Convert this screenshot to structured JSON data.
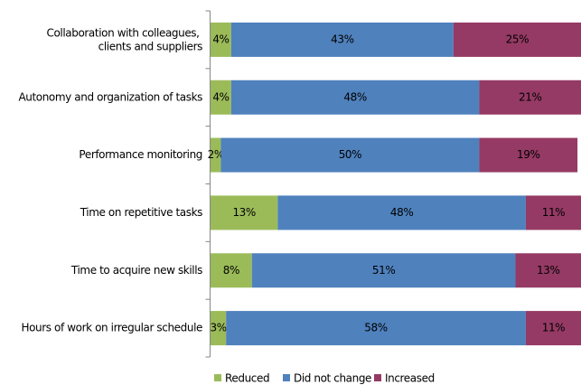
{
  "chart_data": {
    "type": "stacked-bar-horizontal",
    "categories": [
      "Collaboration with colleagues, clients and suppliers",
      "Autonomy and organization of tasks",
      "Performance monitoring",
      "Time on repetitive tasks",
      "Time to acquire new skills",
      "Hours of work on irregular schedule"
    ],
    "series": [
      {
        "name": "Reduced",
        "color": "#9bbb59",
        "values": [
          4,
          4,
          2,
          13,
          8,
          3
        ],
        "value_labels": [
          "4%",
          "4%",
          "2%",
          "13%",
          "8%",
          "3%"
        ]
      },
      {
        "name": "Did not change",
        "color": "#4f81bd",
        "values": [
          43,
          48,
          50,
          48,
          51,
          58
        ],
        "value_labels": [
          "43%",
          "48%",
          "50%",
          "48%",
          "51%",
          "58%"
        ]
      },
      {
        "name": "Increased",
        "color": "#953a64",
        "values": [
          25,
          21,
          19,
          11,
          13,
          11
        ],
        "value_labels": [
          "25%",
          "21%",
          "19%",
          "11%",
          "13%",
          "11%"
        ]
      }
    ],
    "legend": "bottom"
  }
}
